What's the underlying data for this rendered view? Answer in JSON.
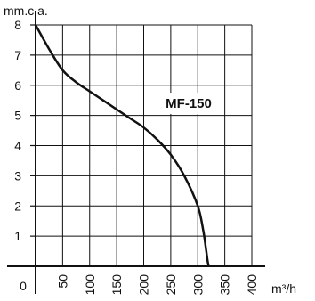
{
  "chart_data": {
    "type": "line",
    "title": "",
    "xlabel": "m³/h",
    "ylabel": "mm.c.a.",
    "xlim": [
      0,
      400
    ],
    "ylim": [
      0,
      8
    ],
    "grid": true,
    "x_ticks": [
      "0",
      "50",
      "100",
      "150",
      "200",
      "250",
      "300",
      "350",
      "400"
    ],
    "y_ticks": [
      "1",
      "2",
      "3",
      "4",
      "5",
      "6",
      "7",
      "8"
    ],
    "annotation": "MF-150",
    "series": [
      {
        "name": "MF-150",
        "x": [
          0,
          25,
          50,
          75,
          100,
          125,
          150,
          175,
          200,
          225,
          250,
          275,
          300,
          310,
          315,
          318,
          320
        ],
        "y": [
          8,
          7.2,
          6.5,
          6.1,
          5.8,
          5.5,
          5.2,
          4.9,
          4.6,
          4.2,
          3.7,
          3.0,
          2.0,
          1.2,
          0.6,
          0.2,
          0
        ]
      }
    ]
  }
}
